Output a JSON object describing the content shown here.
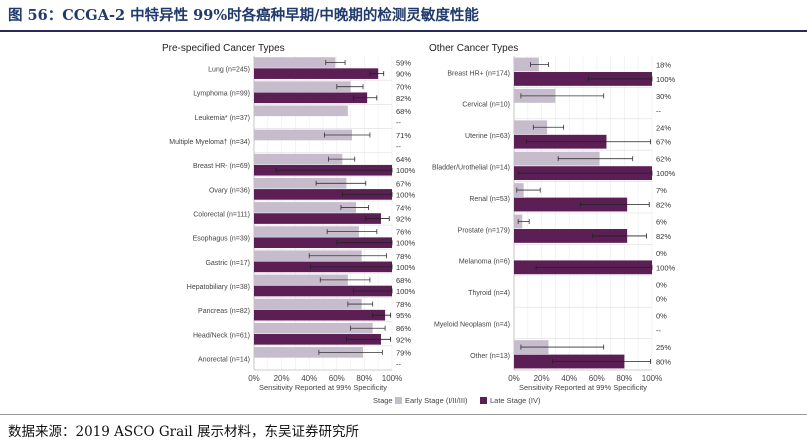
{
  "figure": {
    "title": "图 56：CCGA-2 中特异性 99%时各癌种早期/中晚期的检测灵敏度性能",
    "source": "数据来源：2019 ASCO Grail 展示材料，东吴证券研究所"
  },
  "legend": {
    "title": "Stage",
    "early": "Early Stage (I/II/III)",
    "late": "Late Stage (IV)"
  },
  "colors": {
    "early": "#c6bccb",
    "late": "#5b1f56",
    "error": "#333333",
    "axis": "#bbbbbb"
  },
  "chart_data": [
    {
      "type": "bar",
      "orientation": "horizontal",
      "title": "Pre-specified Cancer Types",
      "xlabel": "Sensitivity Reported at 99% Specificity",
      "xlim": [
        0,
        100
      ],
      "xticks": [
        "0%",
        "20%",
        "40%",
        "60%",
        "80%",
        "100%"
      ],
      "categories": [
        "Lung (n=245)",
        "Lymphoma (n=99)",
        "Leukemia* (n=37)",
        "Multiple Myeloma† (n=34)",
        "Breast HR- (n=69)",
        "Ovary (n=36)",
        "Colorectal (n=111)",
        "Esophagus (n=39)",
        "Gastric (n=17)",
        "Hepatobiliary (n=38)",
        "Pancreas (n=82)",
        "Head/Neck (n=61)",
        "Anorectal (n=14)"
      ],
      "series": [
        {
          "name": "Early Stage (I/II/III)",
          "values": [
            59,
            70,
            68,
            71,
            64,
            67,
            74,
            76,
            78,
            68,
            78,
            86,
            79
          ],
          "labels": [
            "59%",
            "70%",
            "68%",
            "71%",
            "64%",
            "67%",
            "74%",
            "76%",
            "78%",
            "68%",
            "78%",
            "86%",
            "79%"
          ],
          "ci_low": [
            52,
            60,
            null,
            51,
            54,
            45,
            63,
            53,
            40,
            48,
            68,
            70,
            47
          ],
          "ci_high": [
            66,
            79,
            null,
            84,
            73,
            81,
            83,
            89,
            96,
            84,
            86,
            95,
            93
          ]
        },
        {
          "name": "Late Stage (IV)",
          "values": [
            90,
            82,
            0,
            0,
            100,
            100,
            92,
            100,
            100,
            100,
            95,
            92,
            0
          ],
          "labels": [
            "90%",
            "82%",
            "--",
            "--",
            "100%",
            "100%",
            "92%",
            "100%",
            "100%",
            "100%",
            "95%",
            "92%",
            "--"
          ],
          "ci_low": [
            84,
            72,
            null,
            null,
            16,
            64,
            81,
            60,
            41,
            72,
            86,
            67,
            null
          ],
          "ci_high": [
            94,
            89,
            null,
            null,
            100,
            100,
            98,
            100,
            100,
            100,
            99,
            99,
            null
          ]
        }
      ]
    },
    {
      "type": "bar",
      "orientation": "horizontal",
      "title": "Other Cancer Types",
      "xlabel": "Sensitivity Reported at 99% Specificity",
      "xlim": [
        0,
        100
      ],
      "xticks": [
        "0%",
        "20%",
        "40%",
        "60%",
        "80%",
        "100%"
      ],
      "categories": [
        "Breast HR+ (n=174)",
        "Cervical (n=10)",
        "Uterine (n=63)",
        "Bladder/Urothelial (n=14)",
        "Renal (n=53)",
        "Prostate (n=179)",
        "Melanoma (n=6)",
        "Thyroid (n=4)",
        "Myeloid Neoplasm (n=4)",
        "Other (n=13)"
      ],
      "series": [
        {
          "name": "Early Stage (I/II/III)",
          "values": [
            18,
            30,
            24,
            62,
            7,
            6,
            0,
            0,
            0,
            25
          ],
          "labels": [
            "18%",
            "30%",
            "24%",
            "62%",
            "7%",
            "6%",
            "0%",
            "0%",
            "0%",
            "25%"
          ],
          "ci_low": [
            12,
            5,
            14,
            32,
            2,
            3,
            null,
            null,
            null,
            5
          ],
          "ci_high": [
            25,
            65,
            36,
            86,
            19,
            11,
            60,
            70,
            60,
            65
          ]
        },
        {
          "name": "Late Stage (IV)",
          "values": [
            100,
            0,
            67,
            100,
            82,
            82,
            100,
            0,
            0,
            80
          ],
          "labels": [
            "100%",
            "--",
            "67%",
            "100%",
            "82%",
            "82%",
            "100%",
            "0%",
            "--",
            "80%"
          ],
          "ci_low": [
            54,
            null,
            9,
            3,
            48,
            57,
            16,
            null,
            null,
            28
          ],
          "ci_high": [
            100,
            null,
            99,
            100,
            98,
            96,
            100,
            97,
            null,
            99
          ]
        }
      ]
    }
  ]
}
